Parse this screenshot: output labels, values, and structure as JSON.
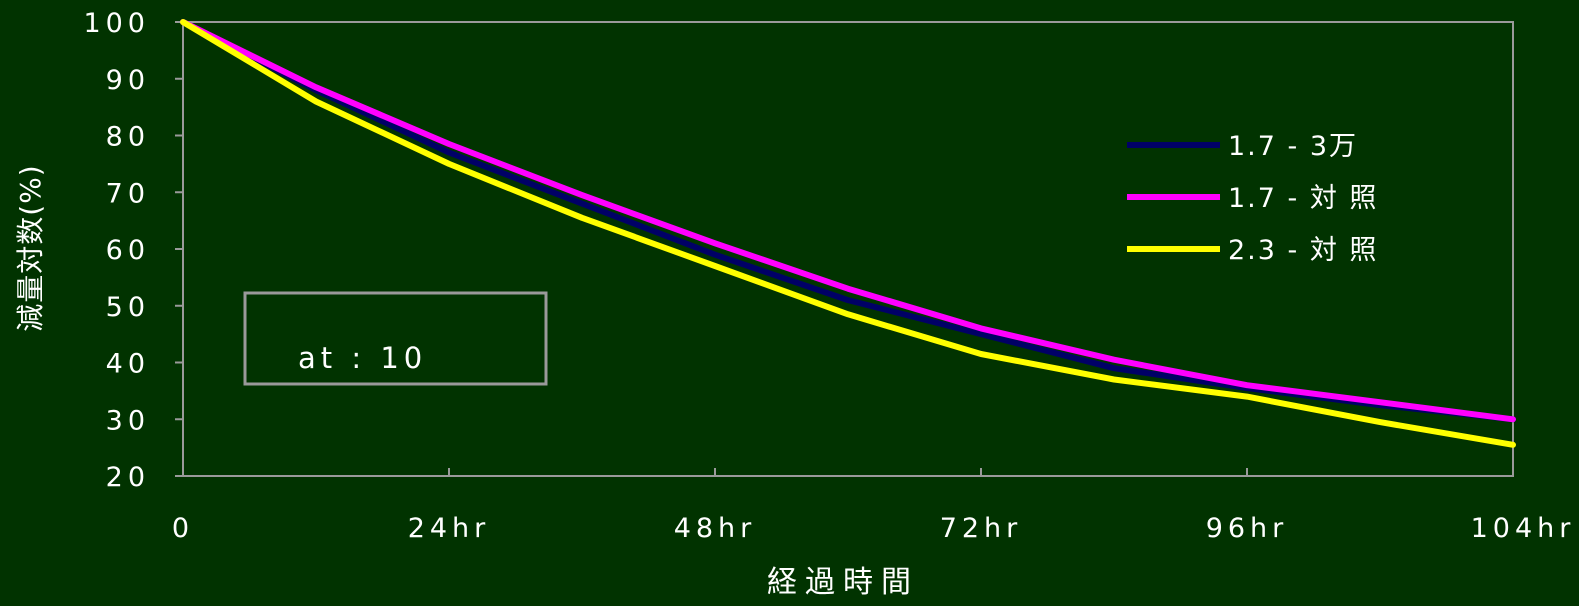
{
  "chart_data": {
    "type": "line",
    "title": "",
    "xlabel": "経過時間",
    "ylabel": "減量対数(%)",
    "x_categories": [
      "0",
      "24hr",
      "48hr",
      "72hr",
      "96hr",
      "104hr"
    ],
    "yticks": [
      "20",
      "30",
      "40",
      "50",
      "60",
      "70",
      "80",
      "90",
      "100"
    ],
    "ylim": [
      20,
      100
    ],
    "xlim": [
      0,
      120
    ],
    "grid": false,
    "legend_position": "right",
    "annotation": "at : 10",
    "series": [
      {
        "name": "1.7 - 3万",
        "color": "#000066",
        "points": [
          [
            0,
            100
          ],
          [
            12,
            88
          ],
          [
            24,
            77
          ],
          [
            36,
            68
          ],
          [
            48,
            59
          ],
          [
            60,
            51
          ],
          [
            72,
            45
          ],
          [
            84,
            39
          ],
          [
            96,
            35.5
          ],
          [
            108,
            32.5
          ],
          [
            120,
            30
          ]
        ]
      },
      {
        "name": "1.7 - 対 照",
        "color": "#ff00ff",
        "points": [
          [
            0,
            100
          ],
          [
            12,
            88.5
          ],
          [
            24,
            78.5
          ],
          [
            36,
            69.5
          ],
          [
            48,
            61
          ],
          [
            60,
            53
          ],
          [
            72,
            46
          ],
          [
            84,
            40.5
          ],
          [
            96,
            36
          ],
          [
            108,
            33
          ],
          [
            120,
            30
          ]
        ]
      },
      {
        "name": "2.3 - 対 照",
        "color": "#ffff00",
        "points": [
          [
            0,
            100
          ],
          [
            12,
            86
          ],
          [
            24,
            75
          ],
          [
            36,
            65.5
          ],
          [
            48,
            57
          ],
          [
            60,
            48.5
          ],
          [
            72,
            41.5
          ],
          [
            84,
            37
          ],
          [
            96,
            34
          ],
          [
            108,
            29.5
          ],
          [
            120,
            25.5
          ]
        ]
      }
    ]
  }
}
